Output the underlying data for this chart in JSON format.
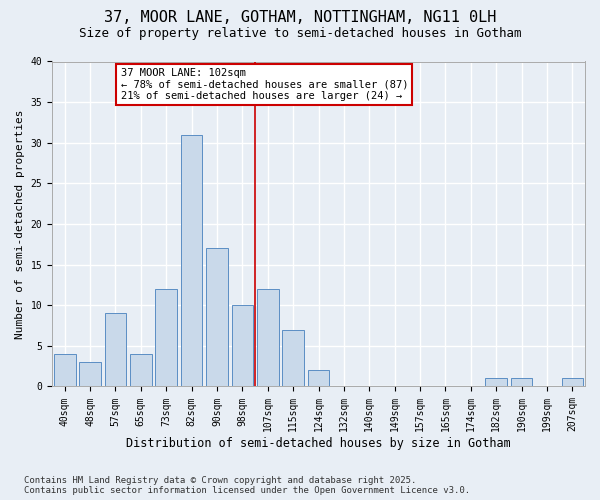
{
  "title1": "37, MOOR LANE, GOTHAM, NOTTINGHAM, NG11 0LH",
  "title2": "Size of property relative to semi-detached houses in Gotham",
  "xlabel": "Distribution of semi-detached houses by size in Gotham",
  "ylabel": "Number of semi-detached properties",
  "bin_labels": [
    "40sqm",
    "48sqm",
    "57sqm",
    "65sqm",
    "73sqm",
    "82sqm",
    "90sqm",
    "98sqm",
    "107sqm",
    "115sqm",
    "124sqm",
    "132sqm",
    "140sqm",
    "149sqm",
    "157sqm",
    "165sqm",
    "174sqm",
    "182sqm",
    "190sqm",
    "199sqm",
    "207sqm"
  ],
  "bar_values": [
    4,
    3,
    9,
    4,
    12,
    31,
    17,
    10,
    12,
    7,
    2,
    0,
    0,
    0,
    0,
    0,
    0,
    1,
    1,
    0,
    1
  ],
  "bar_color": "#c9d9ea",
  "bar_edge_color": "#5b8ec4",
  "background_color": "#e8eef5",
  "grid_color": "#ffffff",
  "property_line_x": 7.5,
  "annotation_title": "37 MOOR LANE: 102sqm",
  "annotation_line1": "← 78% of semi-detached houses are smaller (87)",
  "annotation_line2": "21% of semi-detached houses are larger (24) →",
  "annotation_box_color": "#ffffff",
  "annotation_border_color": "#cc0000",
  "vline_color": "#cc0000",
  "ylim": [
    0,
    40
  ],
  "yticks": [
    0,
    5,
    10,
    15,
    20,
    25,
    30,
    35,
    40
  ],
  "footer1": "Contains HM Land Registry data © Crown copyright and database right 2025.",
  "footer2": "Contains public sector information licensed under the Open Government Licence v3.0.",
  "title1_fontsize": 11,
  "title2_fontsize": 9,
  "xlabel_fontsize": 8.5,
  "ylabel_fontsize": 8,
  "tick_fontsize": 7,
  "footer_fontsize": 6.5,
  "annot_fontsize": 7.5
}
